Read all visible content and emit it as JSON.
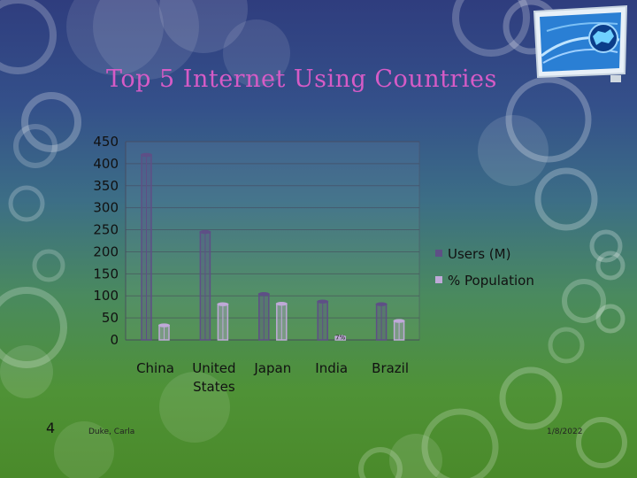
{
  "slide": {
    "title": "Top 5 Internet Using Countries",
    "number": "4",
    "footer_author": "Duke, Carla",
    "footer_date": "1/8/2022",
    "logo_icon": "globe-network-icon"
  },
  "colors": {
    "title": "#d65bc6",
    "users": "#5e4f86",
    "population": "#bfa9d8",
    "background_top": "#2f3d7e",
    "background_bottom": "#4a8a2a"
  },
  "chart_data": {
    "type": "bar",
    "title": "",
    "xlabel": "",
    "ylabel": "",
    "ylim": [
      0,
      450
    ],
    "y_ticks": [
      "450",
      "400",
      "350",
      "300",
      "250",
      "200",
      "150",
      "100",
      "50",
      "0"
    ],
    "categories": [
      "China",
      "United States",
      "Japan",
      "India",
      "Brazil"
    ],
    "category_labels": [
      [
        "China"
      ],
      [
        "United",
        "States"
      ],
      [
        "Japan"
      ],
      [
        "India"
      ],
      [
        "Brazil"
      ]
    ],
    "series": [
      {
        "name": "Users (M)",
        "values": [
          420,
          245,
          104,
          87,
          81
        ]
      },
      {
        "name": "% Population",
        "values": [
          33,
          81,
          82,
          7,
          43
        ]
      }
    ],
    "data_labels": [
      {
        "series": 1,
        "index": 3,
        "text": "7%"
      }
    ],
    "grid": true,
    "legend_position": "right"
  }
}
